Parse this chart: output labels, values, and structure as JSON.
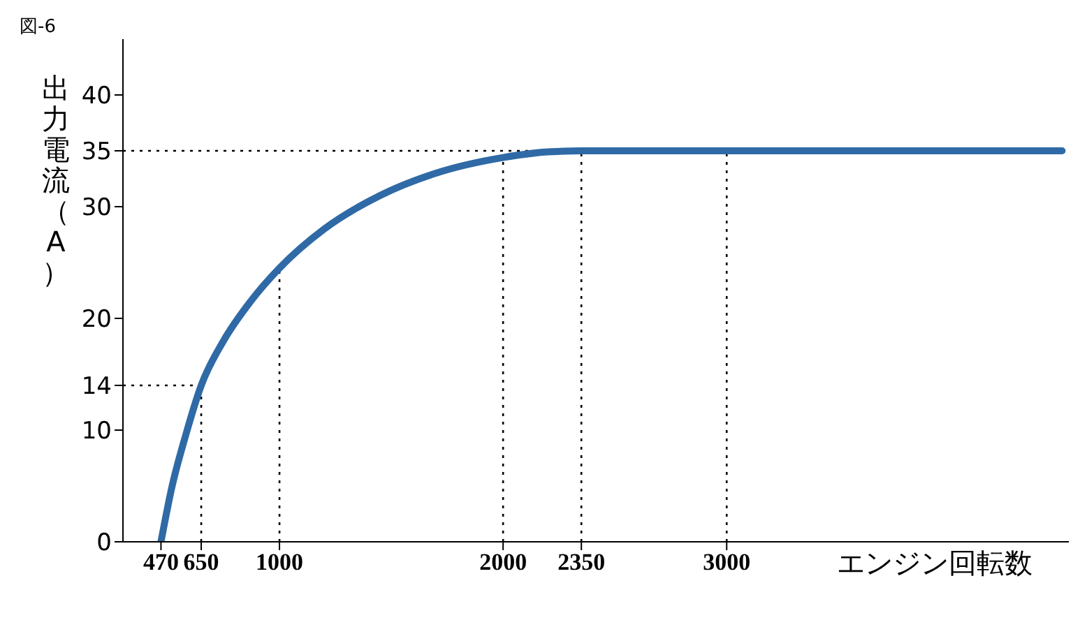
{
  "chart_data": {
    "type": "line",
    "title": "図-6",
    "xlabel": "エンジン回転数",
    "ylabel": "出力電流（A）",
    "x": [
      470,
      520,
      580,
      650,
      750,
      870,
      1000,
      1200,
      1450,
      1700,
      2000,
      2200,
      2350,
      3000,
      4500
    ],
    "series": [
      {
        "color": "#2f6aa6",
        "values": [
          0,
          5,
          9.5,
          14,
          18,
          21.5,
          24.5,
          28,
          31,
          33,
          34.4,
          34.9,
          35,
          35,
          35
        ]
      }
    ],
    "xlim": [
      300,
      4530
    ],
    "xticks": [
      470,
      650,
      1000,
      2000,
      2350,
      3000
    ],
    "ylim": [
      0,
      45
    ],
    "yticks": [
      0,
      10,
      14,
      20,
      30,
      35,
      40
    ],
    "ref_lines": [
      {
        "axis": "x",
        "value": 650,
        "line_style": "dotted"
      },
      {
        "axis": "x",
        "value": 1000,
        "line_style": "dotted"
      },
      {
        "axis": "x",
        "value": 2000,
        "line_style": "dotted"
      },
      {
        "axis": "x",
        "value": 2350,
        "line_style": "dotted"
      },
      {
        "axis": "x",
        "value": 3000,
        "line_style": "dotted"
      },
      {
        "axis": "y",
        "value": 14,
        "line_style": "dotted"
      },
      {
        "axis": "y",
        "value": 35,
        "line_style": "dotted"
      }
    ],
    "grid": false,
    "marker": "none",
    "line_style": "solid"
  }
}
